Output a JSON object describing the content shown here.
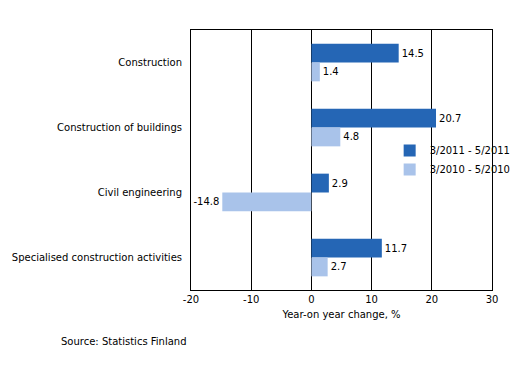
{
  "chart_data": {
    "type": "bar",
    "orientation": "horizontal",
    "categories": [
      "Construction",
      "Construction of buildings",
      "Civil engineering",
      "Specialised construction activities"
    ],
    "series": [
      {
        "name": "3/2011 - 5/2011",
        "color": "#2566b5",
        "values": [
          14.5,
          20.7,
          2.9,
          11.7
        ]
      },
      {
        "name": "3/2010 - 5/2010",
        "color": "#a9c3ea",
        "values": [
          1.4,
          4.8,
          -14.8,
          2.7
        ]
      }
    ],
    "x_label": "Year-on year change, %",
    "xlim": [
      -20,
      30
    ],
    "xticks": [
      -20,
      -10,
      0,
      10,
      20,
      30
    ],
    "grid": true,
    "legend": "right",
    "data_labels": true,
    "annotations": [
      "Source: Statistics Finland"
    ]
  }
}
